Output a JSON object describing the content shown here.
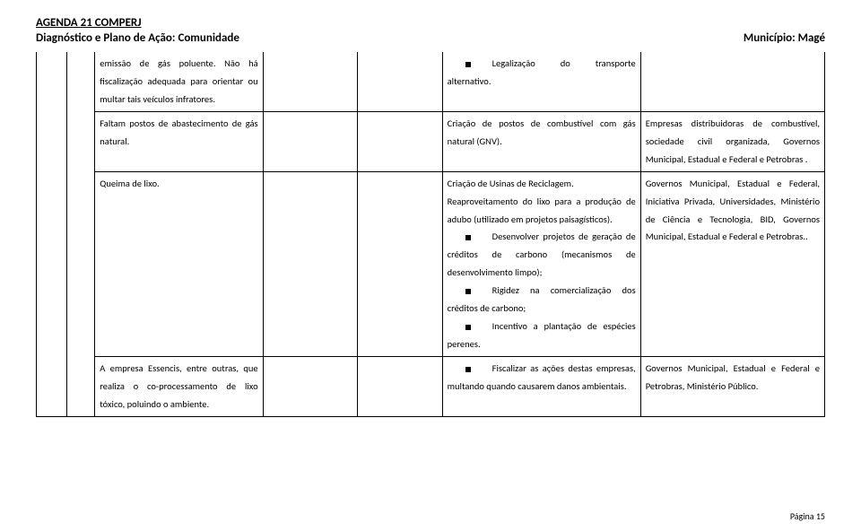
{
  "header": {
    "line1": "AGENDA 21 COMPERJ",
    "line2_left": "Diagnóstico e Plano de Ação: Comunidade",
    "line2_right": "Município: Magé"
  },
  "rows": [
    {
      "colA": "emissão de gás poluente. Não há fiscalização adequada para orientar ou multar tais veículos infratores.",
      "colD_bullet": true,
      "colD": "Legalização do transporte alternativo.",
      "colE": ""
    },
    {
      "colA": "Faltam postos de abastecimento de gás natural.",
      "colD": "Criação de postos de combustível com gás natural (GNV).",
      "colE": "Empresas distribuidoras de combustível, sociedade civil organizada, Governos Municipal, Estadual e Federal e Petrobras ."
    },
    {
      "colA": "Queima de lixo.",
      "colD_multi": [
        {
          "bullet": false,
          "text": "Criação de Usinas de Reciclagem."
        },
        {
          "bullet": false,
          "text": "Reaproveitamento do lixo para a produção de adubo (utilizado em projetos paisagísticos)."
        },
        {
          "bullet": true,
          "text": "Desenvolver projetos de geração de créditos de carbono (mecanismos de desenvolvimento limpo);"
        },
        {
          "bullet": true,
          "text": "Rigidez na comercialização dos créditos de carbono;"
        },
        {
          "bullet": true,
          "text": "Incentivo a plantação de espécies perenes."
        }
      ],
      "colE": "Governos Municipal, Estadual e Federal, Iniciativa Privada, Universidades, Ministério de Ciência e Tecnologia, BID, Governos Municipal, Estadual e Federal e Petrobras.."
    },
    {
      "colA": "A empresa Essencis, entre outras, que realiza o co-processamento de lixo tóxico, poluindo o ambiente.",
      "colD_bullet": true,
      "colD": "Fiscalizar as ações destas empresas, multando quando causarem danos ambientais.",
      "colE": "Governos Municipal, Estadual e Federal e Petrobras, Ministério Público."
    }
  ],
  "page_label": "Página 15"
}
